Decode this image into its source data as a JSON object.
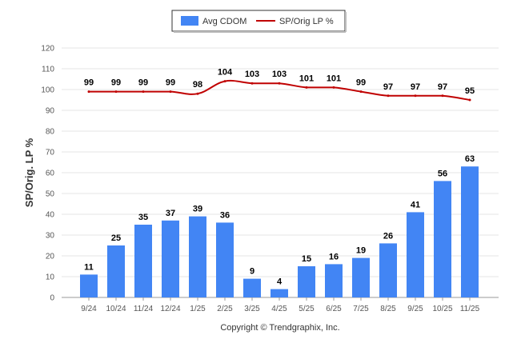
{
  "chart_data": {
    "type": "bar",
    "title": "",
    "xlabel": "",
    "ylabel": "SP/Orig. LP %",
    "ylim": [
      0,
      120
    ],
    "yticks": [
      0,
      10,
      20,
      30,
      40,
      50,
      60,
      70,
      80,
      90,
      100,
      110,
      120
    ],
    "grid": true,
    "legend_position": "top-center",
    "categories": [
      "9/24",
      "10/24",
      "11/24",
      "12/24",
      "1/25",
      "2/25",
      "3/25",
      "4/25",
      "5/25",
      "6/25",
      "7/25",
      "8/25",
      "9/25",
      "10/25",
      "11/25"
    ],
    "series": [
      {
        "name": "Avg CDOM",
        "type": "bar",
        "color": "#4285f4",
        "values": [
          11,
          25,
          35,
          37,
          39,
          36,
          9,
          4,
          15,
          16,
          19,
          26,
          41,
          56,
          63
        ]
      },
      {
        "name": "SP/Orig LP %",
        "type": "line",
        "color": "#c00000",
        "values": [
          99,
          99,
          99,
          99,
          98,
          104,
          103,
          103,
          101,
          101,
          99,
          97,
          97,
          97,
          95
        ]
      }
    ]
  },
  "footer": {
    "copyright": "Copyright © Trendgraphix, Inc."
  }
}
